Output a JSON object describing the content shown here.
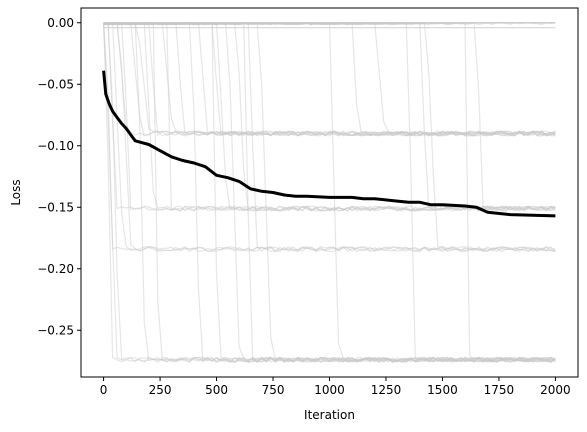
{
  "chart_data": {
    "type": "line",
    "title": "",
    "xlabel": "Iteration",
    "ylabel": "Loss",
    "xlim": [
      -100,
      2100
    ],
    "ylim": [
      -0.288,
      0.012
    ],
    "xticks": [
      0,
      250,
      500,
      750,
      1000,
      1250,
      1500,
      1750,
      2000
    ],
    "xtick_labels": [
      "0",
      "250",
      "500",
      "750",
      "1000",
      "1250",
      "1500",
      "1750",
      "2000"
    ],
    "yticks": [
      0.0,
      -0.05,
      -0.1,
      -0.15,
      -0.2,
      -0.25
    ],
    "ytick_labels": [
      "0.00",
      "−0.05",
      "−0.10",
      "−0.15",
      "−0.20",
      "−0.25"
    ],
    "grid": false,
    "legend": "none",
    "colors": {
      "mean": "#000000",
      "runs": "#c8c8c8"
    },
    "mean_series": {
      "x": [
        0,
        10,
        25,
        40,
        60,
        80,
        100,
        120,
        140,
        160,
        200,
        250,
        300,
        350,
        400,
        450,
        500,
        550,
        600,
        650,
        700,
        750,
        800,
        850,
        900,
        1000,
        1100,
        1150,
        1200,
        1300,
        1350,
        1400,
        1450,
        1500,
        1600,
        1650,
        1700,
        1800,
        2000
      ],
      "y": [
        -0.039,
        -0.058,
        -0.066,
        -0.072,
        -0.077,
        -0.082,
        -0.086,
        -0.091,
        -0.096,
        -0.097,
        -0.099,
        -0.104,
        -0.109,
        -0.112,
        -0.114,
        -0.117,
        -0.124,
        -0.126,
        -0.129,
        -0.135,
        -0.137,
        -0.138,
        -0.14,
        -0.141,
        -0.141,
        -0.142,
        -0.142,
        -0.143,
        -0.143,
        -0.145,
        -0.146,
        -0.146,
        -0.148,
        -0.148,
        -0.149,
        -0.15,
        -0.154,
        -0.156,
        -0.157
      ]
    },
    "run_plateaus": [
      {
        "level": 0.0,
        "count": 6,
        "drop_iters": []
      },
      {
        "level": -0.004,
        "count": 2,
        "drop_iters": []
      },
      {
        "level": -0.09,
        "count": 10,
        "drop_iters": [
          60,
          120,
          150,
          200,
          260,
          330,
          420,
          480,
          1100,
          1200
        ]
      },
      {
        "level": -0.151,
        "count": 8,
        "drop_iters": [
          20,
          90,
          180,
          280,
          500,
          590,
          1400,
          1650
        ]
      },
      {
        "level": -0.184,
        "count": 5,
        "drop_iters": [
          15,
          40,
          70,
          640,
          1430
        ]
      },
      {
        "level": -0.274,
        "count": 14,
        "drop_iters": [
          5,
          10,
          30,
          150,
          220,
          390,
          480,
          550,
          620,
          690,
          1000,
          1350,
          1600,
          2000
        ]
      }
    ]
  }
}
